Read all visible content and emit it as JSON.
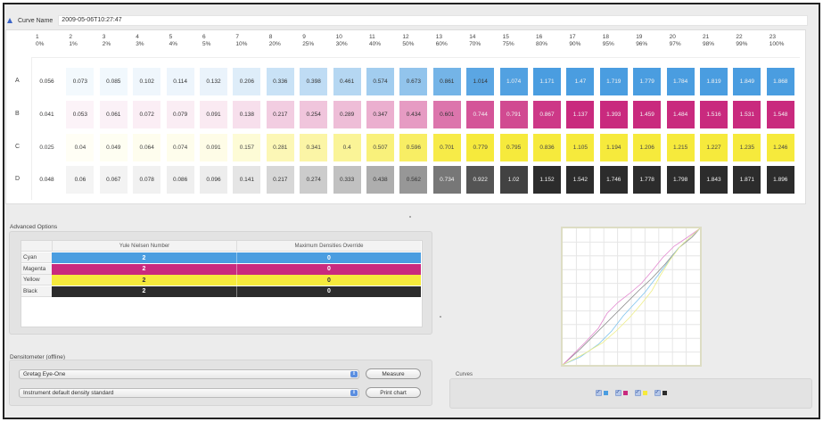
{
  "curve_name": {
    "label": "Curve Name",
    "value": "2009-05-06T10:27:47"
  },
  "columns": [
    {
      "num": "1",
      "pct": "0%"
    },
    {
      "num": "2",
      "pct": "1%"
    },
    {
      "num": "3",
      "pct": "2%"
    },
    {
      "num": "4",
      "pct": "3%"
    },
    {
      "num": "5",
      "pct": "4%"
    },
    {
      "num": "6",
      "pct": "5%"
    },
    {
      "num": "7",
      "pct": "10%"
    },
    {
      "num": "8",
      "pct": "20%"
    },
    {
      "num": "9",
      "pct": "25%"
    },
    {
      "num": "10",
      "pct": "30%"
    },
    {
      "num": "11",
      "pct": "40%"
    },
    {
      "num": "12",
      "pct": "50%"
    },
    {
      "num": "13",
      "pct": "60%"
    },
    {
      "num": "14",
      "pct": "70%"
    },
    {
      "num": "15",
      "pct": "75%"
    },
    {
      "num": "16",
      "pct": "80%"
    },
    {
      "num": "17",
      "pct": "90%"
    },
    {
      "num": "18",
      "pct": "95%"
    },
    {
      "num": "19",
      "pct": "96%"
    },
    {
      "num": "20",
      "pct": "97%"
    },
    {
      "num": "21",
      "pct": "98%"
    },
    {
      "num": "22",
      "pct": "99%"
    },
    {
      "num": "23",
      "pct": "100%"
    }
  ],
  "rows": [
    {
      "label": "A",
      "channel": "cyan",
      "color": "#4a9de0",
      "values": [
        "0.056",
        "0.073",
        "0.085",
        "0.102",
        "0.114",
        "0.132",
        "0.206",
        "0.336",
        "0.398",
        "0.461",
        "0.574",
        "0.673",
        "0.861",
        "1.014",
        "1.074",
        "1.171",
        "1.47",
        "1.719",
        "1.779",
        "1.784",
        "1.819",
        "1.849",
        "1.868"
      ]
    },
    {
      "label": "B",
      "channel": "magenta",
      "color": "#c92a7e",
      "values": [
        "0.041",
        "0.053",
        "0.061",
        "0.072",
        "0.079",
        "0.091",
        "0.138",
        "0.217",
        "0.254",
        "0.289",
        "0.347",
        "0.434",
        "0.601",
        "0.744",
        "0.791",
        "0.867",
        "1.137",
        "1.393",
        "1.459",
        "1.484",
        "1.516",
        "1.531",
        "1.548"
      ]
    },
    {
      "label": "C",
      "channel": "yellow",
      "color": "#f6ea3c",
      "values": [
        "0.025",
        "0.04",
        "0.049",
        "0.064",
        "0.074",
        "0.091",
        "0.157",
        "0.281",
        "0.341",
        "0.4",
        "0.507",
        "0.596",
        "0.701",
        "0.779",
        "0.795",
        "0.836",
        "1.105",
        "1.194",
        "1.206",
        "1.215",
        "1.227",
        "1.235",
        "1.246"
      ]
    },
    {
      "label": "D",
      "channel": "black",
      "color": "#2c2c2c",
      "values": [
        "0.048",
        "0.06",
        "0.067",
        "0.078",
        "0.086",
        "0.096",
        "0.141",
        "0.217",
        "0.274",
        "0.333",
        "0.438",
        "0.562",
        "0.734",
        "0.922",
        "1.02",
        "1.152",
        "1.542",
        "1.746",
        "1.778",
        "1.798",
        "1.843",
        "1.871",
        "1.896"
      ]
    }
  ],
  "advanced_options": {
    "title": "Advanced Options",
    "headers": [
      "Yule Nielsen Number",
      "Maximum Densities Override"
    ],
    "rows": [
      {
        "label": "Cyan",
        "yule": "2",
        "max": "0",
        "color": "#4a9de0",
        "text": "#ffffff"
      },
      {
        "label": "Magenta",
        "yule": "2",
        "max": "0",
        "color": "#c92a7e",
        "text": "#ffffff"
      },
      {
        "label": "Yellow",
        "yule": "2",
        "max": "0",
        "color": "#f6ea3c",
        "text": "#333333"
      },
      {
        "label": "Black",
        "yule": "2",
        "max": "0",
        "color": "#2c2c2c",
        "text": "#ffffff"
      }
    ]
  },
  "densitometer": {
    "title": "Densitometer (offline)",
    "device": "Gretag Eye-One",
    "standard": "Instrument default density standard",
    "measure_label": "Measure",
    "print_label": "Print chart"
  },
  "curves": {
    "title": "Curves",
    "toggles": [
      {
        "channel": "cyan",
        "checked": true,
        "color": "#4a9de0"
      },
      {
        "channel": "magenta",
        "checked": true,
        "color": "#c92a7e"
      },
      {
        "channel": "yellow",
        "checked": true,
        "color": "#f6ea3c"
      },
      {
        "channel": "black",
        "checked": true,
        "color": "#2c2c2c"
      }
    ]
  },
  "icons": {
    "collapse": "triangle-up-icon",
    "select_arrows": "updown-arrows-icon",
    "checkbox": "checkmark-icon"
  }
}
